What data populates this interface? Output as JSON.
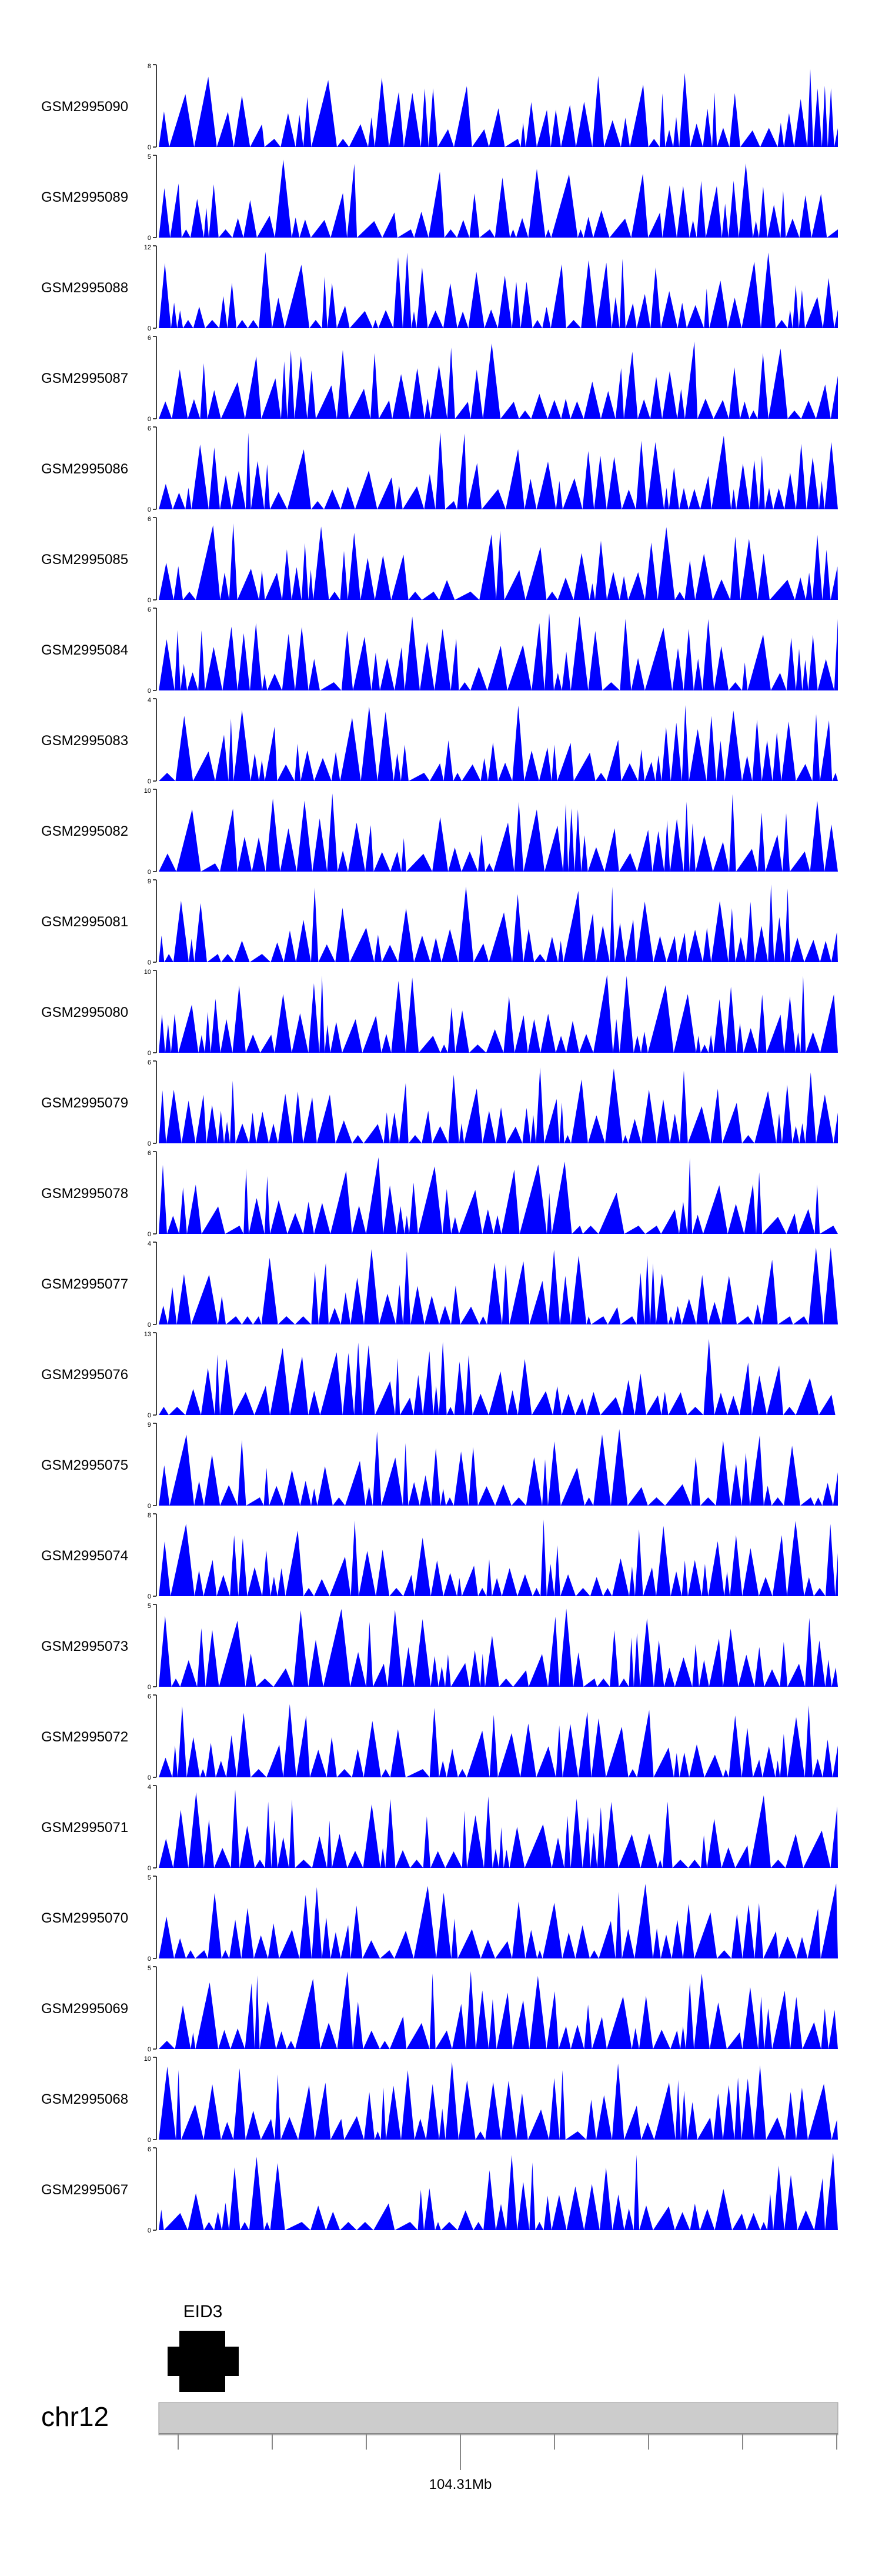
{
  "chart_data": {
    "type": "area",
    "xlabel": "",
    "ylabel": "",
    "grid": false,
    "legend": "none",
    "fill_color": "#0000ff",
    "tracks": [
      {
        "name": "GSM2995090",
        "ymax": "8"
      },
      {
        "name": "GSM2995089",
        "ymax": "5"
      },
      {
        "name": "GSM2995088",
        "ymax": "12"
      },
      {
        "name": "GSM2995087",
        "ymax": "6"
      },
      {
        "name": "GSM2995086",
        "ymax": "6"
      },
      {
        "name": "GSM2995085",
        "ymax": "6"
      },
      {
        "name": "GSM2995084",
        "ymax": "6"
      },
      {
        "name": "GSM2995083",
        "ymax": "4"
      },
      {
        "name": "GSM2995082",
        "ymax": "10"
      },
      {
        "name": "GSM2995081",
        "ymax": "9"
      },
      {
        "name": "GSM2995080",
        "ymax": "10"
      },
      {
        "name": "GSM2995079",
        "ymax": "6"
      },
      {
        "name": "GSM2995078",
        "ymax": "6"
      },
      {
        "name": "GSM2995077",
        "ymax": "4"
      },
      {
        "name": "GSM2995076",
        "ymax": "13"
      },
      {
        "name": "GSM2995075",
        "ymax": "9"
      },
      {
        "name": "GSM2995074",
        "ymax": "8"
      },
      {
        "name": "GSM2995073",
        "ymax": "5"
      },
      {
        "name": "GSM2995072",
        "ymax": "6"
      },
      {
        "name": "GSM2995071",
        "ymax": "4"
      },
      {
        "name": "GSM2995070",
        "ymax": "5"
      },
      {
        "name": "GSM2995069",
        "ymax": "5"
      },
      {
        "name": "GSM2995068",
        "ymax": "10"
      },
      {
        "name": "GSM2995067",
        "ymax": "6"
      }
    ],
    "gene": {
      "name": "EID3",
      "color": "#000000"
    },
    "chromosome": "chr12",
    "axis_tick_label": "104.31Mb",
    "ideogram_color": "#cccccc"
  }
}
